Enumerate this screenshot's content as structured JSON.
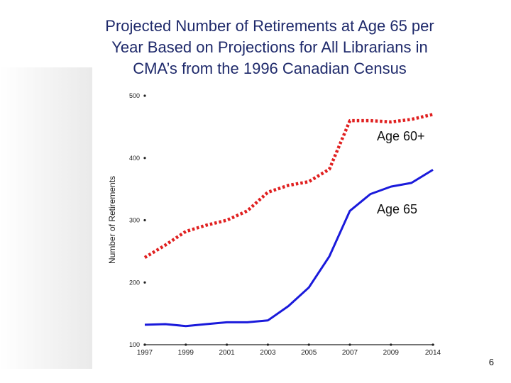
{
  "title_lines": [
    "Projected Number of Retirements at Age 65 per",
    "Year Based on Projections for All Librarians in",
    "CMA’s from the 1996 Canadian Census"
  ],
  "page_number": "6",
  "chart_data": {
    "type": "line",
    "title": "Projected Number of Retirements at Age 65 per Year Based on Projections for All Librarians in CMA’s from the 1996 Canadian Census",
    "xlabel": "",
    "ylabel": "Number of Retirements",
    "ylim": [
      100,
      500
    ],
    "yticks": [
      100,
      200,
      300,
      400,
      500
    ],
    "x_ticks": [
      "1997",
      "1999",
      "2001",
      "2003",
      "2005",
      "2007",
      "2009",
      "2014"
    ],
    "x": [
      "1997",
      "1998",
      "1999",
      "2000",
      "2001",
      "2002",
      "2003",
      "2004",
      "2005",
      "2006",
      "2007",
      "2008",
      "2009",
      "2010",
      "2014"
    ],
    "grid": false,
    "series": [
      {
        "name": "Age 60+",
        "style": "dotted",
        "color": "#e02020",
        "values": [
          240,
          260,
          282,
          292,
          300,
          315,
          345,
          356,
          362,
          382,
          460,
          460,
          458,
          462,
          470
        ]
      },
      {
        "name": "Age 65",
        "style": "solid",
        "color": "#1a1adb",
        "values": [
          132,
          133,
          130,
          133,
          136,
          136,
          139,
          162,
          192,
          242,
          315,
          342,
          354,
          360,
          381
        ]
      }
    ]
  }
}
